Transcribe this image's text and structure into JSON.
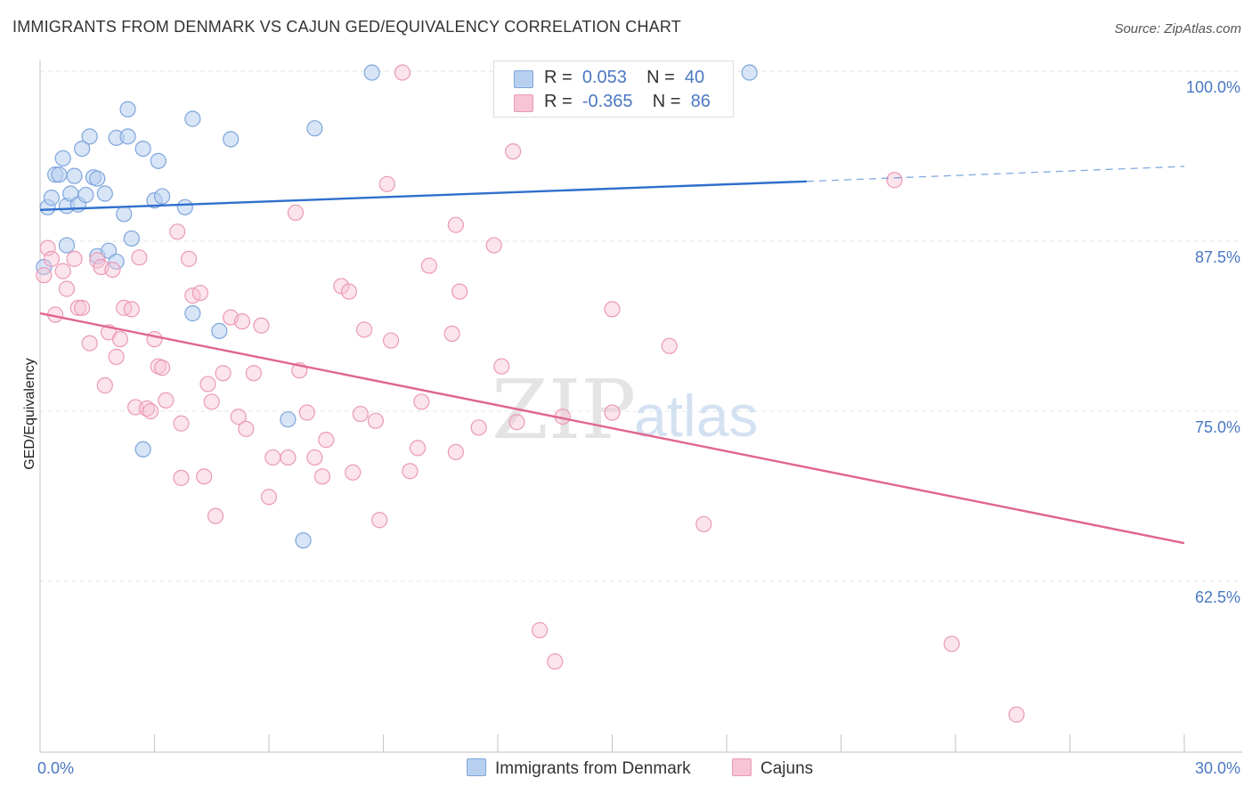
{
  "header": {
    "title": "IMMIGRANTS FROM DENMARK VS CAJUN GED/EQUIVALENCY CORRELATION CHART",
    "source": "Source: ZipAtlas.com"
  },
  "watermark": {
    "zip": "ZIP",
    "atlas": "atlas"
  },
  "legend": {
    "rows": [
      {
        "r_label": "R =",
        "r_value": "0.053",
        "n_label": "N =",
        "n_value": "40"
      },
      {
        "r_label": "R =",
        "r_value": "-0.365",
        "n_label": "N =",
        "n_value": "86"
      }
    ]
  },
  "bottom_legend": {
    "denmark": "Immigrants from Denmark",
    "cajuns": "Cajuns"
  },
  "colors": {
    "denmark_fill": "#b8d0f0",
    "denmark_stroke": "#7fa6dc",
    "denmark_line": "#2f6fcc",
    "cajun_fill": "#f6c4d4",
    "cajun_stroke": "#eb9ab5",
    "cajun_line": "#e0658f",
    "tick_text": "#4a78c2",
    "grid": "#e6e6e6"
  },
  "chart_data": {
    "type": "scatter",
    "title": "IMMIGRANTS FROM DENMARK VS CAJUN GED/EQUIVALENCY CORRELATION CHART",
    "xlabel": "",
    "ylabel": "GED/Equivalency",
    "xlim": [
      0,
      30
    ],
    "ylim": [
      52,
      102
    ],
    "x_tick_labels": [
      {
        "value": 0,
        "label": "0.0%"
      },
      {
        "value": 30,
        "label": "30.0%"
      }
    ],
    "y_ticks": [
      {
        "value": 100,
        "label": "100.0%"
      },
      {
        "value": 87.5,
        "label": "87.5%"
      },
      {
        "value": 75,
        "label": "75.0%"
      },
      {
        "value": 62.5,
        "label": "62.5%"
      }
    ],
    "x_minor_ticks": [
      3,
      6,
      9,
      12,
      15,
      18,
      21,
      24,
      27,
      30
    ],
    "grid": true,
    "series": [
      {
        "name": "Immigrants from Denmark",
        "trend": {
          "x": [
            0,
            20.1,
            30
          ],
          "y": [
            89.8,
            91.9,
            93.0
          ],
          "solid_until": 20.1
        },
        "points": [
          [
            0.2,
            90.0
          ],
          [
            0.3,
            90.7
          ],
          [
            0.4,
            92.4
          ],
          [
            0.5,
            92.4
          ],
          [
            0.6,
            93.6
          ],
          [
            0.7,
            87.2
          ],
          [
            0.7,
            90.1
          ],
          [
            0.8,
            91.0
          ],
          [
            0.9,
            92.3
          ],
          [
            1.0,
            90.2
          ],
          [
            1.1,
            94.3
          ],
          [
            1.2,
            90.9
          ],
          [
            1.3,
            95.2
          ],
          [
            1.4,
            92.2
          ],
          [
            1.5,
            86.4
          ],
          [
            1.5,
            92.1
          ],
          [
            1.7,
            91.0
          ],
          [
            1.8,
            86.8
          ],
          [
            2.0,
            95.1
          ],
          [
            2.2,
            89.5
          ],
          [
            2.3,
            95.2
          ],
          [
            2.3,
            97.2
          ],
          [
            2.4,
            87.7
          ],
          [
            2.7,
            94.3
          ],
          [
            2.7,
            72.2
          ],
          [
            3.0,
            90.5
          ],
          [
            3.1,
            93.4
          ],
          [
            3.2,
            90.8
          ],
          [
            3.8,
            90.0
          ],
          [
            4.0,
            96.5
          ],
          [
            4.0,
            82.2
          ],
          [
            4.7,
            80.9
          ],
          [
            5.0,
            95.0
          ],
          [
            6.5,
            74.4
          ],
          [
            6.9,
            65.5
          ],
          [
            7.2,
            95.8
          ],
          [
            8.7,
            99.9
          ],
          [
            18.6,
            99.9
          ],
          [
            0.1,
            85.6
          ],
          [
            2.0,
            86.0
          ]
        ]
      },
      {
        "name": "Cajuns",
        "trend": {
          "x": [
            0,
            30
          ],
          "y": [
            82.2,
            65.3
          ]
        },
        "points": [
          [
            0.1,
            85.0
          ],
          [
            0.2,
            87.0
          ],
          [
            0.3,
            86.2
          ],
          [
            0.4,
            82.1
          ],
          [
            0.6,
            85.3
          ],
          [
            0.7,
            84.0
          ],
          [
            0.9,
            86.2
          ],
          [
            1.0,
            82.6
          ],
          [
            1.1,
            82.6
          ],
          [
            1.3,
            80.0
          ],
          [
            1.5,
            86.1
          ],
          [
            1.6,
            85.6
          ],
          [
            1.7,
            76.9
          ],
          [
            1.8,
            80.8
          ],
          [
            1.9,
            85.4
          ],
          [
            2.0,
            79.0
          ],
          [
            2.1,
            80.3
          ],
          [
            2.2,
            82.6
          ],
          [
            2.4,
            82.5
          ],
          [
            2.5,
            75.3
          ],
          [
            2.6,
            86.3
          ],
          [
            2.8,
            75.2
          ],
          [
            2.9,
            75.0
          ],
          [
            3.0,
            80.3
          ],
          [
            3.1,
            78.3
          ],
          [
            3.2,
            78.2
          ],
          [
            3.3,
            75.8
          ],
          [
            3.6,
            88.2
          ],
          [
            3.7,
            74.1
          ],
          [
            3.7,
            70.1
          ],
          [
            3.9,
            86.2
          ],
          [
            4.0,
            83.5
          ],
          [
            4.2,
            83.7
          ],
          [
            4.3,
            70.2
          ],
          [
            4.4,
            77.0
          ],
          [
            4.5,
            75.7
          ],
          [
            4.6,
            67.3
          ],
          [
            4.8,
            77.8
          ],
          [
            5.0,
            81.9
          ],
          [
            5.2,
            74.6
          ],
          [
            5.3,
            81.6
          ],
          [
            5.4,
            73.7
          ],
          [
            5.6,
            77.8
          ],
          [
            5.8,
            81.3
          ],
          [
            6.0,
            68.7
          ],
          [
            6.1,
            71.6
          ],
          [
            6.5,
            71.6
          ],
          [
            6.7,
            89.6
          ],
          [
            6.8,
            78.0
          ],
          [
            7.0,
            74.9
          ],
          [
            7.2,
            71.6
          ],
          [
            7.4,
            70.2
          ],
          [
            7.5,
            72.9
          ],
          [
            7.9,
            84.2
          ],
          [
            8.1,
            83.8
          ],
          [
            8.2,
            70.5
          ],
          [
            8.4,
            74.8
          ],
          [
            8.5,
            81.0
          ],
          [
            8.8,
            74.3
          ],
          [
            8.9,
            67.0
          ],
          [
            9.1,
            91.7
          ],
          [
            9.2,
            80.2
          ],
          [
            9.5,
            99.9
          ],
          [
            9.7,
            70.6
          ],
          [
            9.9,
            72.3
          ],
          [
            10.0,
            75.7
          ],
          [
            10.2,
            85.7
          ],
          [
            10.9,
            88.7
          ],
          [
            10.8,
            80.7
          ],
          [
            10.9,
            72.0
          ],
          [
            11.0,
            83.8
          ],
          [
            11.5,
            73.8
          ],
          [
            11.9,
            87.2
          ],
          [
            12.1,
            78.3
          ],
          [
            12.4,
            94.1
          ],
          [
            12.5,
            74.2
          ],
          [
            13.1,
            58.9
          ],
          [
            13.5,
            56.6
          ],
          [
            13.7,
            74.6
          ],
          [
            15.0,
            74.9
          ],
          [
            15.0,
            82.5
          ],
          [
            16.5,
            79.8
          ],
          [
            17.4,
            66.7
          ],
          [
            22.4,
            92.0
          ],
          [
            23.9,
            57.9
          ],
          [
            25.6,
            52.7
          ]
        ]
      }
    ]
  }
}
